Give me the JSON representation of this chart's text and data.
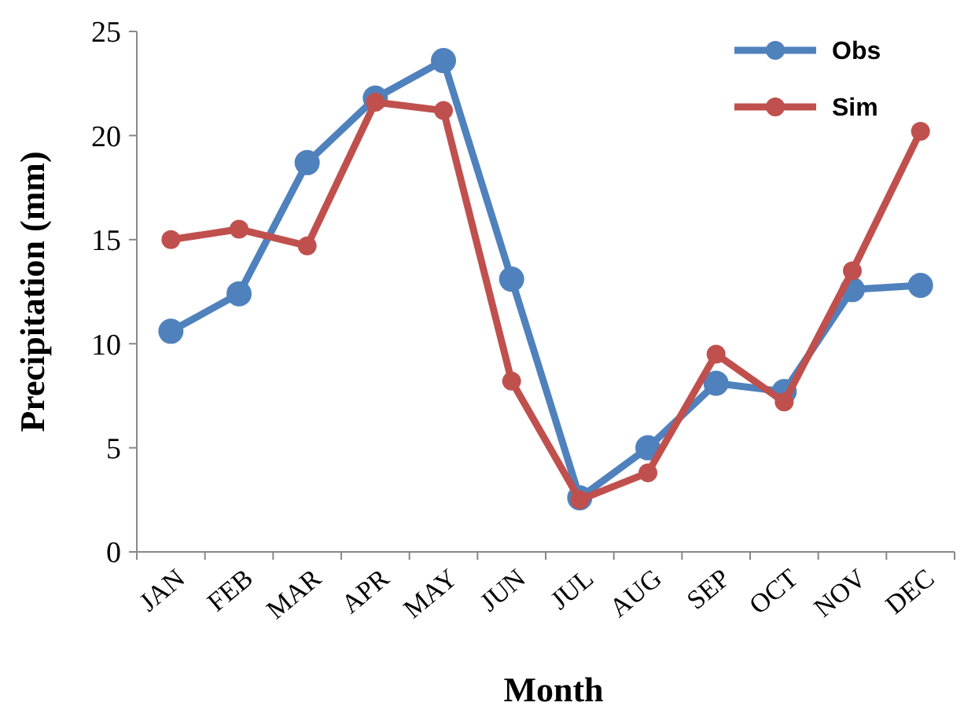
{
  "chart_data": {
    "type": "line",
    "xlabel": "Month",
    "ylabel": "Precipitation (mm)",
    "categories": [
      "JAN",
      "FEB",
      "MAR",
      "APR",
      "MAY",
      "JUN",
      "JUL",
      "AUG",
      "SEP",
      "OCT",
      "NOV",
      "DEC"
    ],
    "series": [
      {
        "name": "Obs",
        "color": "#4f81bd",
        "values": [
          10.6,
          12.4,
          18.7,
          21.8,
          23.6,
          13.1,
          2.6,
          5.0,
          8.1,
          7.7,
          12.6,
          12.8
        ]
      },
      {
        "name": "Sim",
        "color": "#c0504d",
        "values": [
          15.0,
          15.5,
          14.7,
          21.6,
          21.2,
          8.2,
          2.5,
          3.8,
          9.5,
          7.2,
          13.5,
          20.2
        ]
      }
    ],
    "ylim": [
      0,
      25
    ],
    "yticks": [
      0,
      5,
      10,
      15,
      20,
      25
    ],
    "grid": false,
    "legend": "top right",
    "marker": "circle",
    "line_style": "solid"
  }
}
